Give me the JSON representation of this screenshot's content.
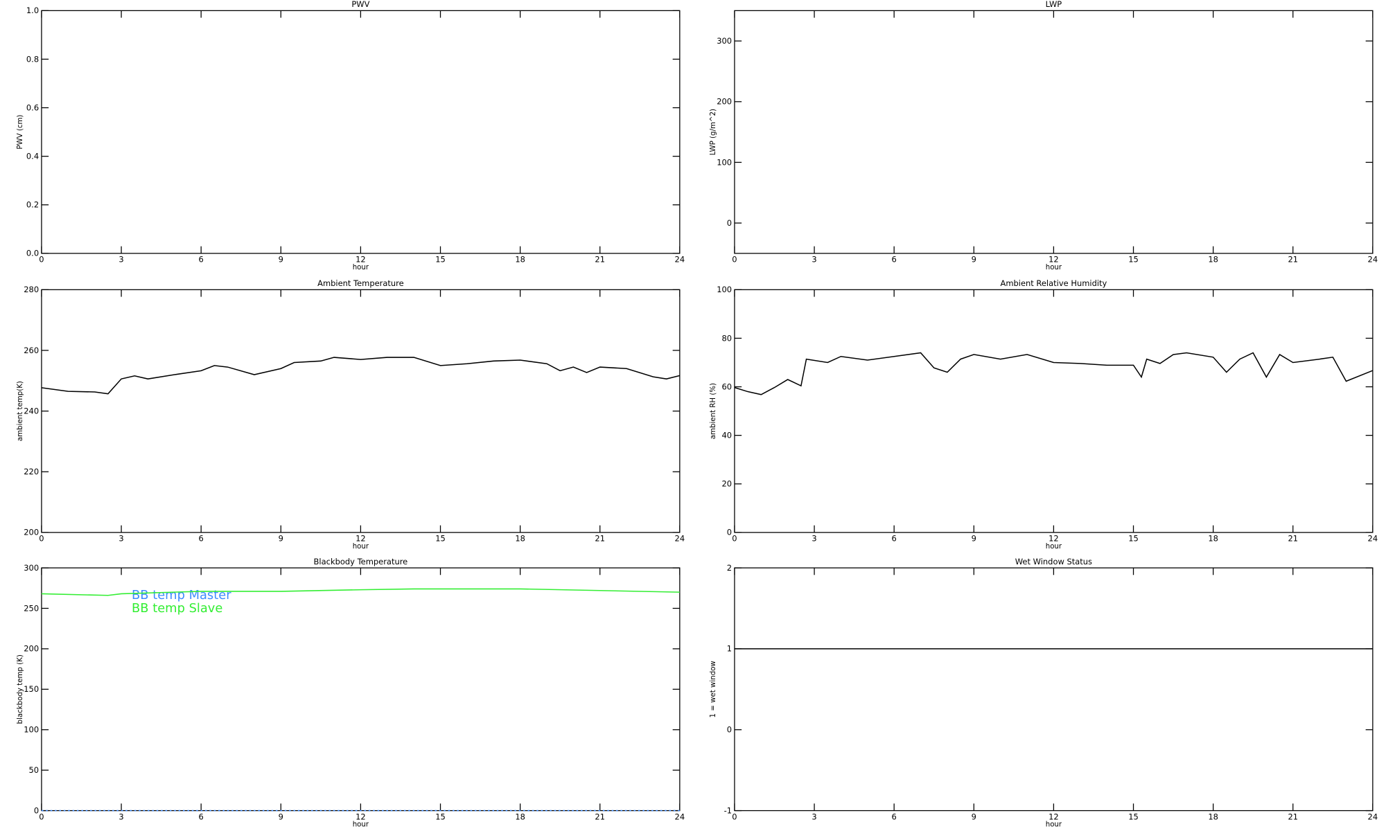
{
  "chart_data": [
    {
      "type": "line",
      "title": "PWV",
      "xlabel": "hour",
      "ylabel": "PWV (cm)",
      "xlim": [
        0,
        24
      ],
      "xticks": [
        0,
        3,
        6,
        9,
        12,
        15,
        18,
        21,
        24
      ],
      "ylim": [
        0,
        1
      ],
      "yticks": [
        {
          "value": 0,
          "label": "0.0"
        },
        0.2,
        0.4,
        0.6,
        0.8,
        {
          "value": 1,
          "label": "1.0"
        }
      ]
    },
    {
      "type": "line",
      "title": "LWP",
      "xlabel": "hour",
      "ylabel": "LWP (g/m^2)",
      "xlim": [
        0,
        24
      ],
      "xticks": [
        0,
        3,
        6,
        9,
        12,
        15,
        18,
        21,
        24
      ],
      "ylim": [
        -50,
        350
      ],
      "yticks": [
        0,
        100,
        200,
        300
      ]
    },
    {
      "type": "line",
      "title": "Ambient Temperature",
      "xlabel": "hour",
      "ylabel": "ambient temp(K)",
      "xlim": [
        0,
        24
      ],
      "xticks": [
        0,
        3,
        6,
        9,
        12,
        15,
        18,
        21,
        24
      ],
      "ylim": [
        200,
        280
      ],
      "yticks": [
        200,
        220,
        240,
        260,
        280
      ],
      "x": [
        0,
        1,
        2,
        2.5,
        3,
        3.5,
        4,
        5,
        6,
        6.5,
        7,
        8,
        9,
        9.5,
        10.5,
        11,
        12,
        13,
        14,
        15,
        16,
        17,
        18,
        19,
        19.5,
        20,
        20.5,
        21,
        22,
        23,
        23.5,
        24
      ],
      "series": [
        {
          "name": null,
          "color": "#000000",
          "values": [
            247.7,
            246.5,
            246.3,
            245.7,
            250.6,
            251.6,
            250.6,
            252,
            253.3,
            255,
            254.5,
            252,
            254,
            256,
            256.5,
            257.7,
            257,
            257.7,
            257.7,
            255,
            255.6,
            256.5,
            256.8,
            255.6,
            253.3,
            254.5,
            252.7,
            254.5,
            254,
            251.3,
            250.6,
            251.7
          ]
        }
      ]
    },
    {
      "type": "line",
      "title": "Ambient Relative Humidity",
      "xlabel": "hour",
      "ylabel": "ambient RH (%)",
      "xlim": [
        0,
        24
      ],
      "xticks": [
        0,
        3,
        6,
        9,
        12,
        15,
        18,
        21,
        24
      ],
      "ylim": [
        0,
        100
      ],
      "yticks": [
        0,
        20,
        40,
        60,
        80,
        100
      ],
      "x": [
        0,
        0.5,
        1,
        1.5,
        2,
        2.5,
        2.7,
        3.5,
        4,
        5,
        6,
        7,
        7.5,
        8,
        8.5,
        9,
        10,
        11,
        12,
        13,
        14,
        15,
        15.3,
        15.5,
        16,
        16.5,
        17,
        18,
        18.5,
        19,
        19.5,
        20,
        20.5,
        21,
        22,
        22.5,
        23,
        24
      ],
      "series": [
        {
          "name": null,
          "color": "#000000",
          "values": [
            59.7,
            58,
            56.8,
            59.7,
            63,
            60.4,
            71.4,
            70,
            72.5,
            71,
            72.5,
            74,
            67.8,
            66,
            71.4,
            73.3,
            71.4,
            73.3,
            70,
            69.6,
            68.9,
            68.9,
            64,
            71.4,
            69.6,
            73.3,
            74,
            72.2,
            66,
            71.4,
            74,
            64,
            73.3,
            70,
            71.4,
            72.2,
            62.3,
            66.7
          ]
        }
      ]
    },
    {
      "type": "line",
      "title": "Blackbody Temperature",
      "xlabel": "hour",
      "ylabel": "blackbody temp (K)",
      "xlim": [
        0,
        24
      ],
      "xticks": [
        0,
        3,
        6,
        9,
        12,
        15,
        18,
        21,
        24
      ],
      "ylim": [
        0,
        300
      ],
      "yticks": [
        0,
        50,
        100,
        150,
        200,
        250,
        300
      ],
      "x": [
        0,
        2.5,
        3,
        6,
        9,
        12,
        14,
        18,
        21,
        24
      ],
      "series": [
        {
          "name": "BB temp Master",
          "color": "#3d8bff",
          "values": [
            0,
            0,
            0,
            0,
            0,
            0,
            0,
            0,
            0,
            0
          ]
        },
        {
          "name": "BB temp Slave",
          "color": "#33ee33",
          "values": [
            268,
            266,
            268,
            271,
            271,
            273,
            274,
            274,
            272,
            270
          ]
        }
      ]
    },
    {
      "type": "line",
      "title": "Wet Window Status",
      "xlabel": "hour",
      "ylabel": "1 = wet window",
      "xlim": [
        0,
        24
      ],
      "xticks": [
        0,
        3,
        6,
        9,
        12,
        15,
        18,
        21,
        24
      ],
      "ylim": [
        -1,
        2
      ],
      "yticks": [
        -1,
        0,
        1,
        2
      ],
      "x": [
        0,
        24
      ],
      "series": [
        {
          "name": null,
          "color": "#000000",
          "values": [
            1,
            1
          ]
        }
      ]
    }
  ]
}
